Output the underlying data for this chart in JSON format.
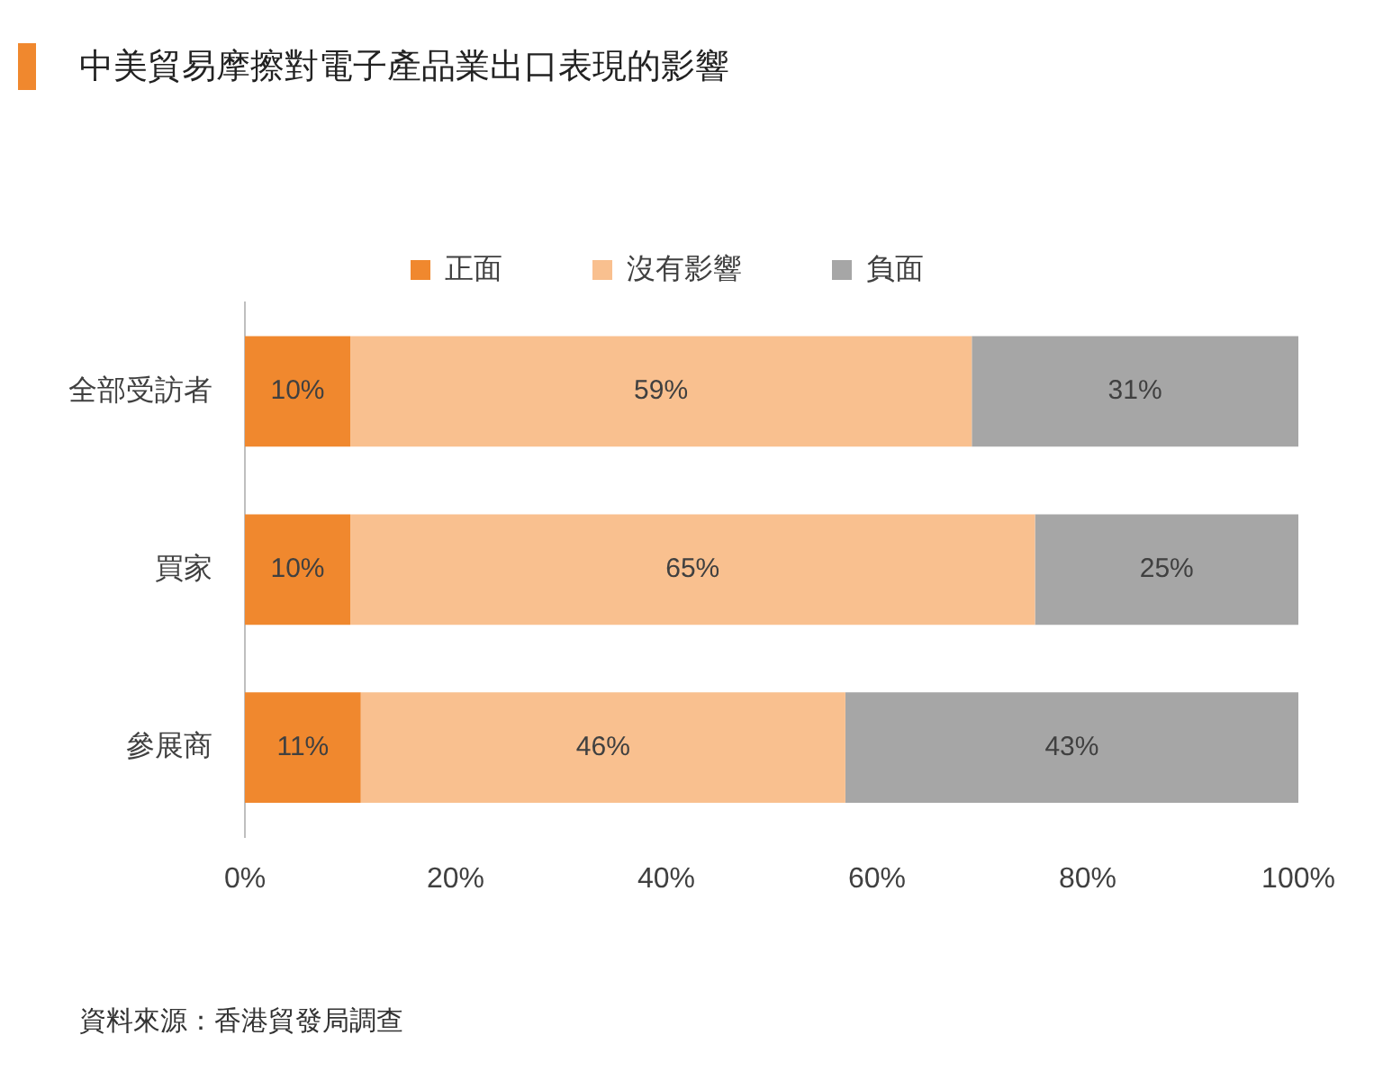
{
  "chart_data": {
    "type": "bar",
    "orientation": "horizontal",
    "stacked": true,
    "title": "中美貿易摩擦對電子產品業出口表現的影響",
    "categories": [
      "全部受訪者",
      "買家",
      "參展商"
    ],
    "series": [
      {
        "name": "正面",
        "color": "#f0882e",
        "values": [
          10,
          10,
          11
        ],
        "value_labels": [
          "10%",
          "10%",
          "11%"
        ]
      },
      {
        "name": "沒有影響",
        "color": "#f9c08f",
        "values": [
          59,
          65,
          46
        ],
        "value_labels": [
          "59%",
          "65%",
          "46%"
        ]
      },
      {
        "name": "負面",
        "color": "#a6a6a6",
        "values": [
          31,
          25,
          43
        ],
        "value_labels": [
          "31%",
          "25%",
          "43%"
        ]
      }
    ],
    "xlim": [
      0,
      100
    ],
    "xticks": [
      {
        "value": 0,
        "label": "0%"
      },
      {
        "value": 20,
        "label": "20%"
      },
      {
        "value": 40,
        "label": "40%"
      },
      {
        "value": 60,
        "label": "60%"
      },
      {
        "value": 80,
        "label": "80%"
      },
      {
        "value": 100,
        "label": "100%"
      }
    ],
    "legend": "top",
    "grid": false,
    "annotations": [
      "資料來源：香港貿發局調查"
    ]
  }
}
